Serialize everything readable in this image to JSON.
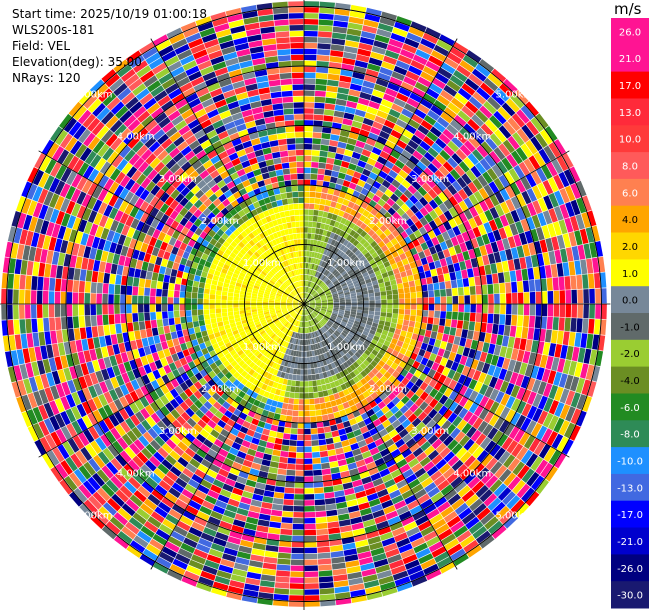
{
  "header": {
    "start_time": "Start time: 2025/10/19 01:00:18",
    "instrument": "WLS200s-181",
    "field": "Field: VEL",
    "elevation": "Elevation(deg): 35.00",
    "nrays": "NRays: 120"
  },
  "chart_data": {
    "type": "ppi-velocity",
    "field": "VEL",
    "units": "m/s",
    "elevation_deg": 35.0,
    "n_rays": 120,
    "range_rings_km": [
      1.0,
      2.0,
      3.0,
      4.0,
      5.0
    ],
    "ring_labels": [
      "1.00km",
      "2.00km",
      "3.00km",
      "4.00km",
      "5.00km"
    ],
    "max_range_km": 5.15,
    "gate_spacing_km": 0.05,
    "valid_signal_range_km": 2.0,
    "velocity_pattern": {
      "description": "near field coherent, far field noise",
      "approach_sector_deg": [
        190,
        360
      ],
      "recede_sector_deg": [
        0,
        190
      ],
      "near_zero_band_km": [
        0.5,
        1.3
      ]
    },
    "colorbar": {
      "unit": "m/s",
      "ticks": [
        "26.0",
        "21.0",
        "17.0",
        "13.0",
        "10.0",
        "8.0",
        "6.0",
        "4.0",
        "2.0",
        "1.0",
        "0.0",
        "-1.0",
        "-2.0",
        "-4.0",
        "-6.0",
        "-8.0",
        "-10.0",
        "-13.0",
        "-17.0",
        "-21.0",
        "-26.0",
        "-30.0"
      ],
      "colors": [
        "#ff1493",
        "#ff1493",
        "#ff0000",
        "#ff2a3a",
        "#ff3a3a",
        "#ff5a5a",
        "#ff8050",
        "#ffa500",
        "#ffd700",
        "#ffff00",
        "#778899",
        "#606a6a",
        "#9acd32",
        "#6b8e23",
        "#228b22",
        "#2e8b57",
        "#1e90ff",
        "#4169e1",
        "#0000ff",
        "#0000cd",
        "#000080",
        "#191970"
      ]
    }
  }
}
